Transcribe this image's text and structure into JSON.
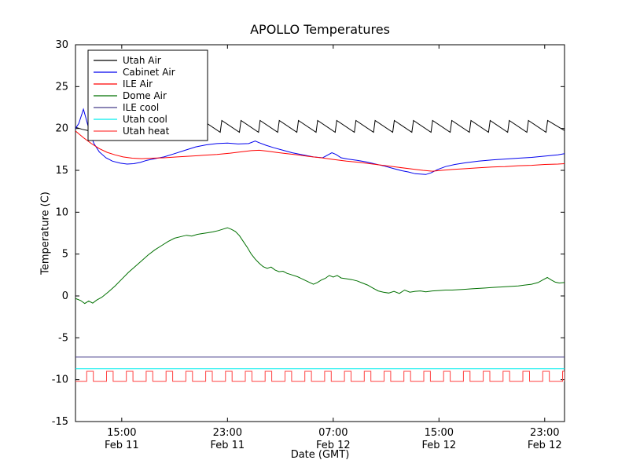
{
  "chart_data": {
    "type": "line",
    "title": "APOLLO Temperatures",
    "xlabel": "Date (GMT)",
    "ylabel": "Temperature (C)",
    "x_unit": "hours since Feb 11 00:00 GMT",
    "xlim": [
      11.5,
      48.5
    ],
    "ylim": [
      -15,
      30
    ],
    "grid": false,
    "legend_position": "upper left",
    "yticks": [
      -15,
      -10,
      -5,
      0,
      5,
      10,
      15,
      20,
      25,
      30
    ],
    "xticks": [
      {
        "hour": 15,
        "time": "15:00",
        "date": "Feb 11"
      },
      {
        "hour": 23,
        "time": "23:00",
        "date": "Feb 11"
      },
      {
        "hour": 31,
        "time": "07:00",
        "date": "Feb 12"
      },
      {
        "hour": 39,
        "time": "15:00",
        "date": "Feb 12"
      },
      {
        "hour": 47,
        "time": "23:00",
        "date": "Feb 12"
      }
    ],
    "series": [
      {
        "name": "Utah Air",
        "color": "#000000",
        "shape": "points_then_sawtooth",
        "points": [
          [
            11.5,
            20.15
          ],
          [
            12.0,
            19.9
          ],
          [
            12.6,
            19.7
          ],
          [
            13.4,
            19.55
          ],
          [
            14.3,
            19.5
          ],
          [
            15.3,
            19.55
          ],
          [
            16.3,
            19.6
          ],
          [
            17.3,
            19.65
          ],
          [
            18.3,
            19.7
          ],
          [
            19.3,
            19.75
          ],
          [
            20.3,
            19.8
          ],
          [
            20.95,
            19.85
          ]
        ],
        "sawtooth": {
          "start": 21.0,
          "end": 48.5,
          "period": 1.45,
          "rise": 0.12,
          "base": 19.55,
          "peak": 20.95
        }
      },
      {
        "name": "Cabinet Air",
        "color": "#0000ee",
        "shape": "points",
        "points": [
          [
            11.5,
            20.0
          ],
          [
            11.75,
            20.6
          ],
          [
            12.0,
            21.8
          ],
          [
            12.1,
            22.3
          ],
          [
            12.3,
            21.2
          ],
          [
            12.6,
            19.4
          ],
          [
            12.9,
            18.2
          ],
          [
            13.3,
            17.2
          ],
          [
            13.8,
            16.5
          ],
          [
            14.3,
            16.1
          ],
          [
            14.9,
            15.85
          ],
          [
            15.4,
            15.75
          ],
          [
            15.9,
            15.8
          ],
          [
            16.4,
            15.95
          ],
          [
            16.9,
            16.2
          ],
          [
            17.5,
            16.4
          ],
          [
            18.2,
            16.6
          ],
          [
            19.0,
            17.0
          ],
          [
            19.8,
            17.4
          ],
          [
            20.6,
            17.8
          ],
          [
            21.4,
            18.05
          ],
          [
            22.2,
            18.2
          ],
          [
            23.0,
            18.25
          ],
          [
            23.8,
            18.15
          ],
          [
            24.6,
            18.2
          ],
          [
            25.1,
            18.5
          ],
          [
            25.4,
            18.3
          ],
          [
            25.9,
            18.0
          ],
          [
            26.5,
            17.7
          ],
          [
            27.2,
            17.4
          ],
          [
            27.9,
            17.1
          ],
          [
            28.7,
            16.85
          ],
          [
            29.5,
            16.6
          ],
          [
            30.2,
            16.5
          ],
          [
            30.6,
            16.85
          ],
          [
            30.9,
            17.1
          ],
          [
            31.2,
            16.9
          ],
          [
            31.6,
            16.5
          ],
          [
            32.1,
            16.35
          ],
          [
            32.8,
            16.2
          ],
          [
            33.5,
            16.0
          ],
          [
            34.2,
            15.75
          ],
          [
            34.9,
            15.5
          ],
          [
            35.6,
            15.2
          ],
          [
            36.2,
            14.95
          ],
          [
            36.7,
            14.8
          ],
          [
            37.2,
            14.6
          ],
          [
            37.6,
            14.55
          ],
          [
            38.0,
            14.5
          ],
          [
            38.4,
            14.7
          ],
          [
            38.9,
            15.1
          ],
          [
            39.5,
            15.45
          ],
          [
            40.2,
            15.7
          ],
          [
            41.0,
            15.9
          ],
          [
            42.0,
            16.1
          ],
          [
            43.0,
            16.25
          ],
          [
            44.0,
            16.35
          ],
          [
            45.0,
            16.45
          ],
          [
            46.0,
            16.55
          ],
          [
            47.0,
            16.7
          ],
          [
            48.0,
            16.85
          ],
          [
            48.5,
            17.0
          ]
        ]
      },
      {
        "name": "ILE Air",
        "color": "#ff0000",
        "shape": "points",
        "points": [
          [
            11.5,
            19.7
          ],
          [
            12.1,
            18.9
          ],
          [
            12.7,
            18.2
          ],
          [
            13.3,
            17.6
          ],
          [
            13.9,
            17.15
          ],
          [
            14.5,
            16.85
          ],
          [
            15.1,
            16.6
          ],
          [
            15.8,
            16.45
          ],
          [
            16.5,
            16.4
          ],
          [
            17.3,
            16.45
          ],
          [
            18.2,
            16.5
          ],
          [
            19.2,
            16.6
          ],
          [
            20.2,
            16.7
          ],
          [
            21.2,
            16.8
          ],
          [
            22.2,
            16.9
          ],
          [
            23.2,
            17.05
          ],
          [
            24.0,
            17.2
          ],
          [
            24.8,
            17.35
          ],
          [
            25.4,
            17.4
          ],
          [
            26.0,
            17.3
          ],
          [
            26.7,
            17.15
          ],
          [
            27.5,
            17.0
          ],
          [
            28.3,
            16.85
          ],
          [
            29.2,
            16.65
          ],
          [
            30.1,
            16.5
          ],
          [
            31.0,
            16.3
          ],
          [
            32.0,
            16.1
          ],
          [
            33.0,
            15.95
          ],
          [
            34.0,
            15.75
          ],
          [
            35.0,
            15.55
          ],
          [
            36.0,
            15.35
          ],
          [
            37.0,
            15.15
          ],
          [
            37.8,
            15.0
          ],
          [
            38.5,
            14.9
          ],
          [
            39.2,
            15.0
          ],
          [
            40.0,
            15.1
          ],
          [
            41.0,
            15.2
          ],
          [
            42.0,
            15.3
          ],
          [
            43.0,
            15.4
          ],
          [
            44.0,
            15.45
          ],
          [
            45.0,
            15.55
          ],
          [
            46.0,
            15.6
          ],
          [
            47.0,
            15.7
          ],
          [
            48.0,
            15.75
          ],
          [
            48.5,
            15.8
          ]
        ]
      },
      {
        "name": "Dome Air",
        "color": "#007000",
        "shape": "points",
        "points": [
          [
            11.5,
            -0.3
          ],
          [
            11.9,
            -0.55
          ],
          [
            12.2,
            -0.9
          ],
          [
            12.5,
            -0.6
          ],
          [
            12.8,
            -0.85
          ],
          [
            13.1,
            -0.5
          ],
          [
            13.5,
            -0.15
          ],
          [
            14.0,
            0.5
          ],
          [
            14.5,
            1.2
          ],
          [
            15.0,
            2.0
          ],
          [
            15.5,
            2.8
          ],
          [
            16.0,
            3.5
          ],
          [
            16.5,
            4.2
          ],
          [
            17.0,
            4.9
          ],
          [
            17.5,
            5.5
          ],
          [
            18.0,
            6.0
          ],
          [
            18.5,
            6.5
          ],
          [
            19.0,
            6.9
          ],
          [
            19.5,
            7.1
          ],
          [
            19.9,
            7.25
          ],
          [
            20.3,
            7.15
          ],
          [
            20.7,
            7.35
          ],
          [
            21.1,
            7.45
          ],
          [
            21.5,
            7.55
          ],
          [
            21.9,
            7.65
          ],
          [
            22.3,
            7.8
          ],
          [
            22.7,
            8.0
          ],
          [
            23.0,
            8.15
          ],
          [
            23.3,
            7.95
          ],
          [
            23.6,
            7.7
          ],
          [
            23.9,
            7.2
          ],
          [
            24.2,
            6.5
          ],
          [
            24.5,
            5.8
          ],
          [
            24.8,
            5.0
          ],
          [
            25.1,
            4.4
          ],
          [
            25.4,
            3.9
          ],
          [
            25.7,
            3.5
          ],
          [
            26.0,
            3.3
          ],
          [
            26.3,
            3.45
          ],
          [
            26.6,
            3.1
          ],
          [
            26.9,
            2.9
          ],
          [
            27.2,
            2.95
          ],
          [
            27.5,
            2.7
          ],
          [
            27.9,
            2.5
          ],
          [
            28.3,
            2.3
          ],
          [
            28.7,
            2.0
          ],
          [
            29.1,
            1.7
          ],
          [
            29.5,
            1.4
          ],
          [
            29.8,
            1.6
          ],
          [
            30.1,
            1.9
          ],
          [
            30.4,
            2.1
          ],
          [
            30.7,
            2.45
          ],
          [
            31.0,
            2.25
          ],
          [
            31.3,
            2.45
          ],
          [
            31.6,
            2.15
          ],
          [
            32.0,
            2.05
          ],
          [
            32.4,
            1.95
          ],
          [
            32.8,
            1.8
          ],
          [
            33.2,
            1.55
          ],
          [
            33.6,
            1.3
          ],
          [
            34.0,
            0.95
          ],
          [
            34.4,
            0.6
          ],
          [
            34.8,
            0.45
          ],
          [
            35.2,
            0.35
          ],
          [
            35.6,
            0.55
          ],
          [
            36.0,
            0.3
          ],
          [
            36.4,
            0.7
          ],
          [
            36.8,
            0.45
          ],
          [
            37.2,
            0.55
          ],
          [
            37.6,
            0.6
          ],
          [
            38.0,
            0.5
          ],
          [
            38.5,
            0.6
          ],
          [
            39.0,
            0.65
          ],
          [
            39.5,
            0.7
          ],
          [
            40.0,
            0.7
          ],
          [
            40.5,
            0.75
          ],
          [
            41.0,
            0.8
          ],
          [
            41.5,
            0.85
          ],
          [
            42.0,
            0.9
          ],
          [
            42.5,
            0.95
          ],
          [
            43.0,
            1.0
          ],
          [
            43.5,
            1.05
          ],
          [
            44.0,
            1.1
          ],
          [
            44.5,
            1.15
          ],
          [
            45.0,
            1.2
          ],
          [
            45.5,
            1.3
          ],
          [
            46.0,
            1.4
          ],
          [
            46.5,
            1.6
          ],
          [
            46.9,
            1.95
          ],
          [
            47.2,
            2.2
          ],
          [
            47.5,
            1.9
          ],
          [
            47.8,
            1.65
          ],
          [
            48.1,
            1.55
          ],
          [
            48.5,
            1.6
          ]
        ]
      },
      {
        "name": "ILE cool",
        "color": "#483d8b",
        "shape": "flat",
        "y": -7.3
      },
      {
        "name": "Utah cool",
        "color": "#00eeee",
        "shape": "flat",
        "y": -8.7
      },
      {
        "name": "Utah heat",
        "color": "#ff4040",
        "shape": "pulses",
        "pulses": {
          "low": -10.2,
          "high": -9.0,
          "start": 12.35,
          "period": 1.5,
          "width": 0.5,
          "end": 48.5
        }
      }
    ]
  }
}
